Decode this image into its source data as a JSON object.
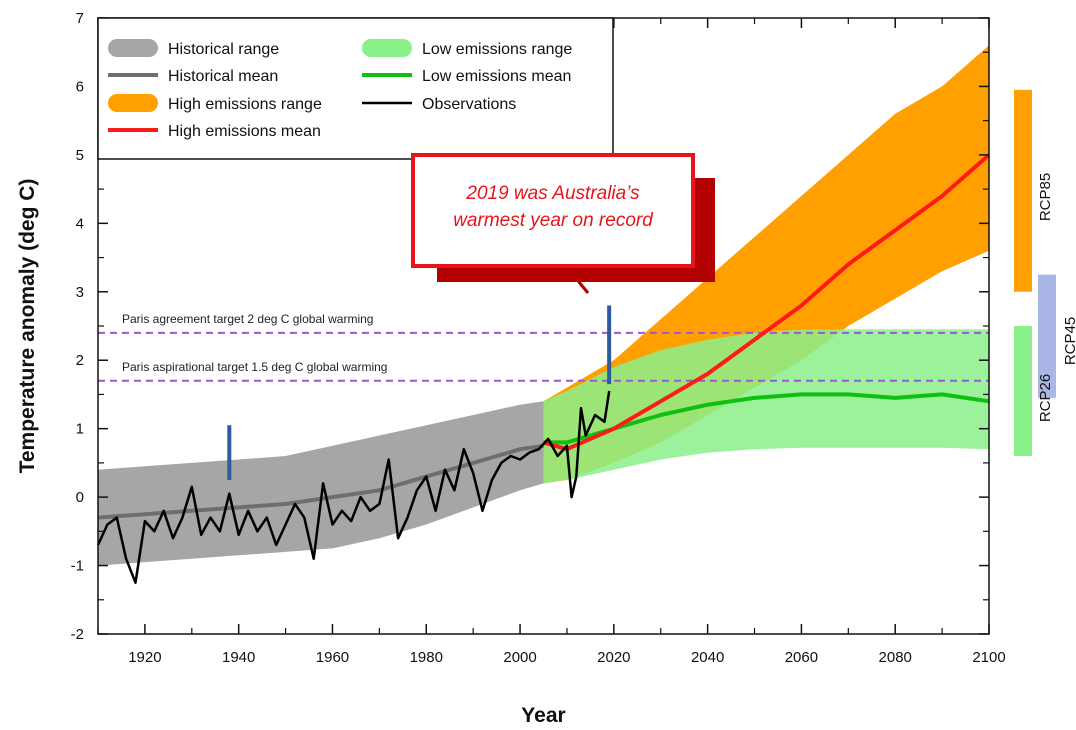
{
  "chart_data": {
    "type": "area",
    "xlabel": "Year",
    "ylabel": "Temperature anomaly (deg C)",
    "xlim": [
      1910,
      2100
    ],
    "ylim": [
      -2,
      7
    ],
    "xticks": [
      1920,
      1940,
      1960,
      1980,
      2000,
      2020,
      2040,
      2060,
      2080,
      2100
    ],
    "yticks": [
      -2,
      -1,
      0,
      1,
      2,
      3,
      4,
      5,
      6,
      7
    ],
    "legend_position": "top-left",
    "legend": [
      {
        "label": "Historical range",
        "kind": "band",
        "color": "#a6a6a6"
      },
      {
        "label": "Historical mean",
        "kind": "line",
        "color": "#6e6e6e"
      },
      {
        "label": "High emissions range",
        "kind": "band",
        "color": "#ffa000"
      },
      {
        "label": "High emissions mean",
        "kind": "line",
        "color": "#ff1a1a"
      },
      {
        "label": "Low emissions range",
        "kind": "band",
        "color": "#8af08a"
      },
      {
        "label": "Low emissions mean",
        "kind": "line",
        "color": "#10c010"
      },
      {
        "label": "Observations",
        "kind": "line",
        "color": "#000000"
      }
    ],
    "reference_lines": [
      {
        "label": "Paris agreement target 2 deg C global warming",
        "y": 2.4,
        "color": "#9b59d0"
      },
      {
        "label": "Paris aspirational target 1.5 deg C global warming",
        "y": 1.7,
        "color": "#9b59d0"
      }
    ],
    "annotation": {
      "lines": [
        "2019 was Australia’s",
        "warmest year on record"
      ],
      "year": 2019
    },
    "uncertainty_markers": [
      {
        "x": 1938,
        "y_low": 0.25,
        "y_high": 1.05,
        "color": "#2e5b9a"
      },
      {
        "x": 2019,
        "y_low": 1.65,
        "y_high": 2.8,
        "color": "#2e5b9a"
      }
    ],
    "rcp_bars": [
      {
        "label": "RCP85",
        "y_low": 3.0,
        "y_high": 5.95,
        "color": "#ffa000"
      },
      {
        "label": "RCP45",
        "y_low": 1.45,
        "y_high": 3.25,
        "color": "#a9b6e6"
      },
      {
        "label": "RCP26",
        "y_low": 0.6,
        "y_high": 2.5,
        "color": "#8af08a"
      }
    ],
    "series": [
      {
        "name": "Historical range",
        "color": "#a6a6a6",
        "x": [
          1910,
          1920,
          1930,
          1940,
          1950,
          1960,
          1970,
          1980,
          1990,
          2000,
          2005
        ],
        "low": [
          -1.0,
          -0.95,
          -0.9,
          -0.85,
          -0.8,
          -0.75,
          -0.6,
          -0.4,
          -0.15,
          0.1,
          0.2
        ],
        "high": [
          0.4,
          0.45,
          0.5,
          0.55,
          0.6,
          0.75,
          0.9,
          1.05,
          1.2,
          1.35,
          1.4
        ]
      },
      {
        "name": "High emissions range",
        "color": "#ffa000",
        "x": [
          2005,
          2010,
          2020,
          2030,
          2040,
          2050,
          2060,
          2070,
          2080,
          2090,
          2100
        ],
        "low": [
          0.2,
          0.25,
          0.5,
          0.8,
          1.2,
          1.6,
          2.0,
          2.5,
          2.9,
          3.3,
          3.6
        ],
        "high": [
          1.4,
          1.6,
          2.0,
          2.6,
          3.2,
          3.8,
          4.4,
          5.0,
          5.6,
          6.0,
          6.6
        ]
      },
      {
        "name": "Low emissions range",
        "color": "#8af08a",
        "x": [
          2005,
          2010,
          2020,
          2030,
          2040,
          2050,
          2060,
          2070,
          2080,
          2090,
          2100
        ],
        "low": [
          0.2,
          0.25,
          0.4,
          0.55,
          0.65,
          0.7,
          0.72,
          0.72,
          0.72,
          0.72,
          0.7
        ],
        "high": [
          1.4,
          1.55,
          1.9,
          2.15,
          2.3,
          2.4,
          2.45,
          2.45,
          2.45,
          2.45,
          2.45
        ]
      },
      {
        "name": "Historical mean",
        "color": "#6e6e6e",
        "x": [
          1910,
          1920,
          1930,
          1940,
          1950,
          1960,
          1970,
          1980,
          1990,
          2000,
          2005
        ],
        "values": [
          -0.3,
          -0.25,
          -0.2,
          -0.15,
          -0.1,
          0.0,
          0.1,
          0.3,
          0.5,
          0.7,
          0.75
        ]
      },
      {
        "name": "High emissions mean",
        "color": "#ff1a1a",
        "x": [
          2005,
          2010,
          2020,
          2030,
          2040,
          2050,
          2060,
          2070,
          2080,
          2090,
          2100
        ],
        "values": [
          0.8,
          0.7,
          1.0,
          1.4,
          1.8,
          2.3,
          2.8,
          3.4,
          3.9,
          4.4,
          5.0
        ]
      },
      {
        "name": "Low emissions mean",
        "color": "#10c010",
        "x": [
          2005,
          2010,
          2020,
          2030,
          2040,
          2050,
          2060,
          2070,
          2080,
          2090,
          2100
        ],
        "values": [
          0.8,
          0.8,
          1.0,
          1.2,
          1.35,
          1.45,
          1.5,
          1.5,
          1.45,
          1.5,
          1.4
        ]
      },
      {
        "name": "Observations",
        "color": "#000000",
        "x": [
          1910,
          1912,
          1914,
          1916,
          1918,
          1920,
          1922,
          1924,
          1926,
          1928,
          1930,
          1932,
          1934,
          1936,
          1938,
          1940,
          1942,
          1944,
          1946,
          1948,
          1950,
          1952,
          1954,
          1956,
          1958,
          1960,
          1962,
          1964,
          1966,
          1968,
          1970,
          1972,
          1974,
          1976,
          1978,
          1980,
          1982,
          1984,
          1986,
          1988,
          1990,
          1992,
          1994,
          1996,
          1998,
          2000,
          2002,
          2004,
          2006,
          2008,
          2010,
          2011,
          2012,
          2013,
          2014,
          2016,
          2018,
          2019
        ],
        "values": [
          -0.7,
          -0.4,
          -0.3,
          -0.9,
          -1.25,
          -0.35,
          -0.5,
          -0.2,
          -0.6,
          -0.3,
          0.15,
          -0.55,
          -0.3,
          -0.5,
          0.05,
          -0.55,
          -0.2,
          -0.5,
          -0.3,
          -0.7,
          -0.4,
          -0.1,
          -0.3,
          -0.9,
          0.2,
          -0.4,
          -0.2,
          -0.35,
          0.0,
          -0.2,
          -0.1,
          0.55,
          -0.6,
          -0.3,
          0.1,
          0.3,
          -0.2,
          0.4,
          0.1,
          0.7,
          0.35,
          -0.2,
          0.25,
          0.5,
          0.6,
          0.55,
          0.65,
          0.7,
          0.85,
          0.6,
          0.75,
          0.0,
          0.3,
          1.3,
          0.9,
          1.2,
          1.1,
          1.55
        ]
      }
    ]
  }
}
